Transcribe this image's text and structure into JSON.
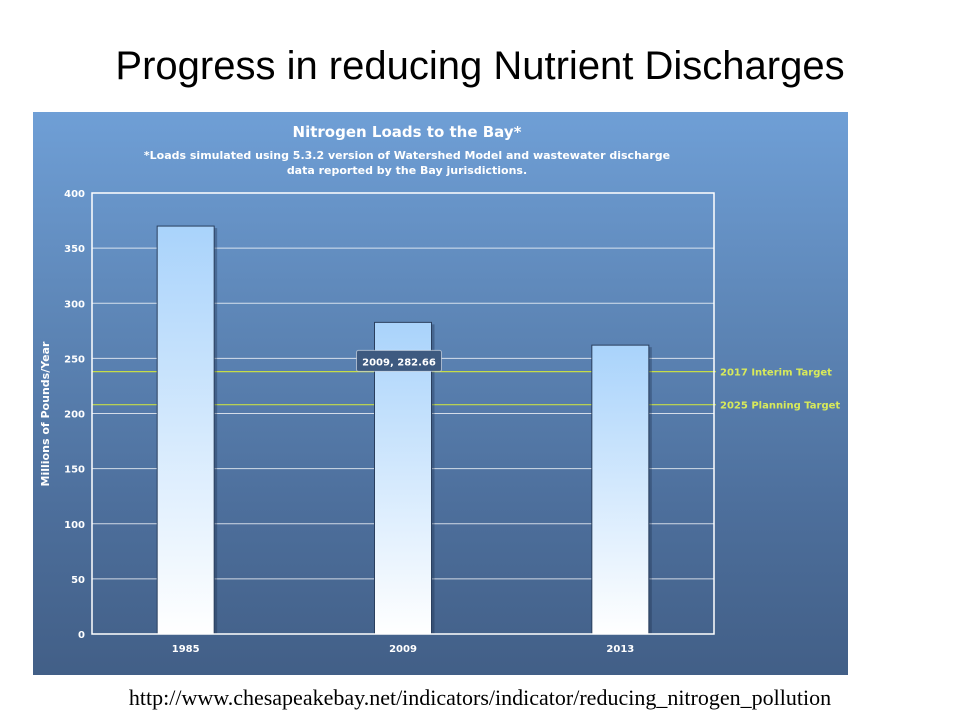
{
  "slide": {
    "title": "Progress in reducing Nutrient Discharges",
    "source_url": "http://www.chesapeakebay.net/indicators/indicator/reducing_nitrogen_pollution"
  },
  "chart_data": {
    "type": "bar",
    "title": "Nitrogen Loads to the Bay*",
    "subtitle_lines": [
      "*Loads simulated using 5.3.2 version of Watershed Model and wastewater discharge",
      "data reported by the Bay jurisdictions."
    ],
    "xlabel": "",
    "ylabel": "Millions of Pounds/Year",
    "categories": [
      "1985",
      "2009",
      "2013"
    ],
    "values": [
      370,
      282.66,
      262
    ],
    "ylim": [
      0,
      400
    ],
    "yticks": [
      0,
      50,
      100,
      150,
      200,
      250,
      300,
      350,
      400
    ],
    "grid": true,
    "tooltip": {
      "category_index": 1,
      "text": "2009, 282.66"
    },
    "targets": [
      {
        "label": "2017 Interim Target",
        "value": 238
      },
      {
        "label": "2025 Planning Target",
        "value": 208
      }
    ],
    "colors": {
      "bar_top": "#a9d3fb",
      "bar_bottom": "#ffffff",
      "target_line": "#c6dc48",
      "target_label": "#d8ea5a",
      "grid": "#ffffff",
      "tooltip_bg": "#3e5a80"
    }
  }
}
